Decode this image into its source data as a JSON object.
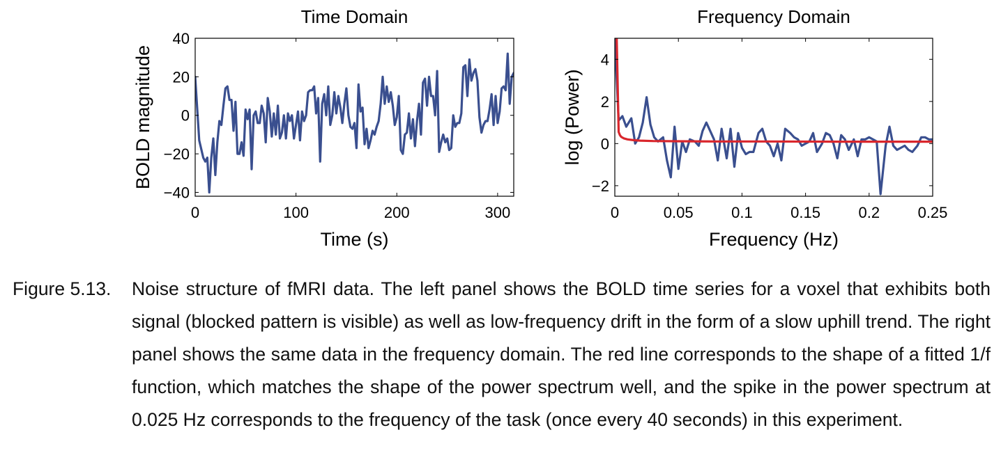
{
  "figure": {
    "label": "Figure 5.13.",
    "caption": "Noise structure of fMRI data. The left panel shows the BOLD time series for a voxel that exhibits both signal (blocked pattern is visible) as well as low-frequency drift in the form of a slow uphill trend. The right panel shows the same data in the frequency domain. The red line corresponds to the shape of a fitted 1/f function, which matches the shape of the power spectrum well, and the spike in the power spectrum at 0.025 Hz corresponds to the frequency of the task (once every 40 seconds) in this experiment."
  },
  "chart_data": [
    {
      "type": "line",
      "title": "Time Domain",
      "xlabel": "Time (s)",
      "ylabel": "BOLD magnitude",
      "xlim": [
        0,
        316
      ],
      "ylim": [
        -42,
        40
      ],
      "xticks": [
        0,
        100,
        200,
        300
      ],
      "xtick_labels": [
        "0",
        "100",
        "200",
        "300"
      ],
      "yticks": [
        -40,
        -20,
        0,
        20,
        40
      ],
      "ytick_labels": [
        "−40",
        "−20",
        "0",
        "20",
        "40"
      ],
      "grid": false,
      "series": [
        {
          "color": "#3a4f8f",
          "x": [
            0,
            4,
            8,
            10,
            12,
            14,
            16,
            18,
            20,
            22,
            24,
            26,
            28,
            30,
            32,
            34,
            36,
            38,
            40,
            42,
            44,
            46,
            48,
            50,
            52,
            54,
            56,
            58,
            60,
            62,
            64,
            66,
            68,
            70,
            72,
            74,
            76,
            78,
            80,
            82,
            84,
            86,
            88,
            90,
            92,
            94,
            96,
            98,
            100,
            102,
            104,
            106,
            108,
            110,
            112,
            114,
            116,
            118,
            120,
            122,
            124,
            126,
            128,
            130,
            132,
            134,
            136,
            138,
            140,
            142,
            144,
            146,
            148,
            150,
            152,
            154,
            156,
            158,
            160,
            162,
            164,
            166,
            168,
            170,
            172,
            174,
            176,
            178,
            180,
            182,
            184,
            186,
            188,
            190,
            192,
            194,
            196,
            198,
            200,
            202,
            204,
            206,
            208,
            210,
            212,
            214,
            216,
            218,
            220,
            222,
            224,
            226,
            228,
            230,
            232,
            234,
            236,
            238,
            240,
            242,
            244,
            246,
            248,
            250,
            252,
            254,
            256,
            258,
            260,
            262,
            264,
            266,
            268,
            270,
            272,
            274,
            276,
            278,
            280,
            282,
            284,
            286,
            288,
            290,
            292,
            294,
            296,
            298,
            300,
            302,
            304,
            306,
            308,
            310,
            312,
            314,
            316
          ],
          "y": [
            20,
            -13,
            -22,
            -24,
            -22,
            -40,
            -22,
            -12,
            -31,
            -14,
            -3,
            -5,
            5,
            14,
            15,
            8,
            8,
            -8,
            7,
            -20,
            -20,
            -14,
            -21,
            3,
            -2,
            3,
            -28,
            0,
            2,
            -4,
            -4,
            5,
            1,
            -14,
            9,
            2,
            -11,
            1,
            -10,
            5,
            -12,
            -9,
            0,
            -12,
            1,
            -3,
            0,
            -12,
            -5,
            2,
            -13,
            2,
            -3,
            0,
            12,
            13,
            13,
            15,
            1,
            9,
            -24,
            6,
            11,
            0,
            15,
            -5,
            0,
            12,
            1,
            10,
            4,
            -4,
            6,
            14,
            0,
            -6,
            -7,
            -4,
            -17,
            16,
            2,
            4,
            -15,
            -7,
            -17,
            -13,
            -8,
            -10,
            -6,
            -3,
            6,
            20,
            6,
            15,
            7,
            12,
            5,
            -5,
            -1,
            10,
            -18,
            -20,
            -10,
            -9,
            1,
            -12,
            -2,
            -16,
            -3,
            6,
            -10,
            17,
            19,
            5,
            20,
            10,
            10,
            0,
            23,
            -19,
            -14,
            -10,
            -14,
            -12,
            -18,
            -17,
            0,
            -6,
            -4,
            -4,
            1,
            25,
            26,
            10,
            29,
            18,
            22,
            24,
            18,
            -1,
            -9,
            -5,
            -3,
            -3,
            3,
            11,
            -5,
            10,
            -4,
            2,
            14,
            15,
            13,
            32,
            6,
            20,
            22
          ]
        }
      ]
    },
    {
      "type": "line",
      "title": "Frequency Domain",
      "xlabel": "Frequency (Hz)",
      "ylabel": "log (Power)",
      "xlim": [
        0,
        0.25
      ],
      "ylim": [
        -2.5,
        5
      ],
      "xticks": [
        0,
        0.05,
        0.1,
        0.15,
        0.2,
        0.25
      ],
      "xtick_labels": [
        "0",
        "0.05",
        "0.1",
        "0.15",
        "0.2",
        "0.25"
      ],
      "yticks": [
        -2,
        0,
        2,
        4
      ],
      "ytick_labels": [
        "−2",
        "0",
        "2",
        "4"
      ],
      "grid": false,
      "series": [
        {
          "color": "#3a4f8f",
          "x": [
            0,
            0.003,
            0.006,
            0.009,
            0.013,
            0.016,
            0.019,
            0.022,
            0.025,
            0.028,
            0.031,
            0.034,
            0.038,
            0.041,
            0.044,
            0.047,
            0.05,
            0.053,
            0.056,
            0.059,
            0.063,
            0.066,
            0.069,
            0.072,
            0.075,
            0.078,
            0.081,
            0.084,
            0.088,
            0.091,
            0.094,
            0.097,
            0.1,
            0.103,
            0.106,
            0.109,
            0.113,
            0.116,
            0.119,
            0.122,
            0.125,
            0.128,
            0.131,
            0.134,
            0.138,
            0.141,
            0.144,
            0.147,
            0.15,
            0.153,
            0.156,
            0.159,
            0.163,
            0.166,
            0.169,
            0.172,
            0.175,
            0.178,
            0.181,
            0.184,
            0.188,
            0.191,
            0.194,
            0.197,
            0.2,
            0.203,
            0.206,
            0.209,
            0.213,
            0.216,
            0.219,
            0.222,
            0.225,
            0.228,
            0.231,
            0.234,
            0.238,
            0.241,
            0.244,
            0.247,
            0.25
          ],
          "y": [
            5,
            1.1,
            1.3,
            0.8,
            1.2,
            0,
            0.3,
            1,
            2.2,
            0.9,
            0.3,
            0.1,
            0.3,
            -0.8,
            -1.6,
            0.8,
            -1.2,
            0.1,
            -0.4,
            0.2,
            0.1,
            -0.1,
            0.6,
            1,
            0.6,
            0.2,
            -0.8,
            0.7,
            -0.7,
            0.7,
            -1.1,
            0.5,
            -0.2,
            -0.5,
            -0.4,
            -0.4,
            0.5,
            0.7,
            0.1,
            -0.1,
            -0.6,
            0,
            -0.8,
            0.7,
            0.5,
            0.3,
            0.2,
            -0.1,
            0,
            0.1,
            0.5,
            -0.4,
            0,
            0.5,
            0.4,
            0,
            -0.7,
            0.4,
            0.2,
            -0.3,
            0.2,
            -0.6,
            0.2,
            0.2,
            0.3,
            0.2,
            0.1,
            -2.4,
            -0.1,
            0.8,
            -0.1,
            -0.3,
            -0.2,
            -0.1,
            -0.3,
            -0.4,
            -0.1,
            0.3,
            0.3,
            0.2,
            0.2
          ]
        },
        {
          "name": "fitted 1/f",
          "color": "#d9262c",
          "x": [
            0.0015,
            0.002,
            0.003,
            0.004,
            0.005,
            0.007,
            0.01,
            0.015,
            0.02,
            0.03,
            0.05,
            0.08,
            0.12,
            0.18,
            0.25
          ],
          "y": [
            5,
            3.6,
            0.55,
            0.4,
            0.32,
            0.25,
            0.2,
            0.16,
            0.14,
            0.12,
            0.11,
            0.1,
            0.1,
            0.09,
            0.09
          ]
        }
      ]
    }
  ]
}
